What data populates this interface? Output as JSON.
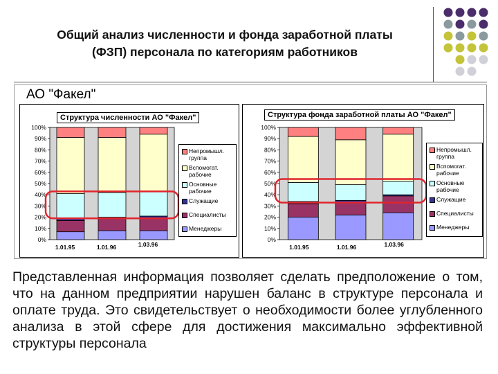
{
  "slide": {
    "title_line1": "Общий анализ численности и фонда заработной платы",
    "title_line2": "(ФЗП) персонала по категориям работников",
    "company": "АО \"Факел\"",
    "body": "Представленная информация позволяет сделать предположение о том, что на данном предприятии нарушен баланс в структуре персонала и оплате труда. Это свидетельствует о необходимости более углубленного анализа в этой сфере для достижения максимально эффективной структуры персонала"
  },
  "colors": {
    "menedzhery": "#9999ff",
    "specialisty": "#993366",
    "sluzhashchie": "#333399",
    "osnovnye": "#ccffff",
    "vspomogat": "#ffffcc",
    "neprom": "#ff8080",
    "highlight": "#e0242c"
  },
  "legend": [
    {
      "label_lines": [
        "Непромышл.",
        "группа"
      ],
      "color_key": "neprom"
    },
    {
      "label_lines": [
        "Вспомогат.",
        "рабочие"
      ],
      "color_key": "vspomogat"
    },
    {
      "label_lines": [
        "Основные",
        "рабочие"
      ],
      "color_key": "osnovnye"
    },
    {
      "label_lines": [
        "Служащие"
      ],
      "color_key": "sluzhashchie"
    },
    {
      "label_lines": [
        "Специалисты"
      ],
      "color_key": "specialisty"
    },
    {
      "label_lines": [
        "Менеджеры"
      ],
      "color_key": "menedzhery"
    }
  ],
  "chart_data": [
    {
      "type": "bar",
      "stacked": true,
      "title": "Структура численности АО \"Факел\"",
      "categories": [
        "1.01.95",
        "1.01.96",
        "1.03.96"
      ],
      "ylim": [
        0,
        100
      ],
      "yticks": [
        "0%",
        "10%",
        "20%",
        "30%",
        "40%",
        "50%",
        "60%",
        "70%",
        "80%",
        "90%",
        "100%"
      ],
      "series": [
        {
          "name": "Менеджеры",
          "color_key": "menedzhery",
          "values": [
            7,
            8,
            8
          ]
        },
        {
          "name": "Специалисты",
          "color_key": "specialisty",
          "values": [
            10,
            11,
            11
          ]
        },
        {
          "name": "Служащие",
          "color_key": "sluzhashchie",
          "values": [
            2,
            1,
            2
          ]
        },
        {
          "name": "Основные рабочие",
          "color_key": "osnovnye",
          "values": [
            22,
            22,
            22
          ]
        },
        {
          "name": "Вспомогат. рабочие",
          "color_key": "vspomogat",
          "values": [
            50,
            49,
            51
          ]
        },
        {
          "name": "Непромышл. группа",
          "color_key": "neprom",
          "values": [
            9,
            9,
            6
          ]
        }
      ]
    },
    {
      "type": "bar",
      "stacked": true,
      "title": "Структура фонда заработной платы АО \"Факел\"",
      "categories": [
        "1.01.95",
        "1.01.96",
        "1.03.96"
      ],
      "ylim": [
        0,
        100
      ],
      "yticks": [
        "0%",
        "10%",
        "20%",
        "30%",
        "40%",
        "50%",
        "60%",
        "70%",
        "80%",
        "90%",
        "100%"
      ],
      "series": [
        {
          "name": "Менеджеры",
          "color_key": "menedzhery",
          "values": [
            20,
            22,
            24
          ]
        },
        {
          "name": "Специалисты",
          "color_key": "specialisty",
          "values": [
            12,
            11,
            15
          ]
        },
        {
          "name": "Служащие",
          "color_key": "sluzhashchie",
          "values": [
            2,
            2,
            1
          ]
        },
        {
          "name": "Основные рабочие",
          "color_key": "osnovnye",
          "values": [
            17,
            14,
            12
          ]
        },
        {
          "name": "Вспомогат. рабочие",
          "color_key": "vspomogat",
          "values": [
            41,
            40,
            42
          ]
        },
        {
          "name": "Непромышл. группа",
          "color_key": "neprom",
          "values": [
            8,
            11,
            6
          ]
        }
      ]
    }
  ]
}
